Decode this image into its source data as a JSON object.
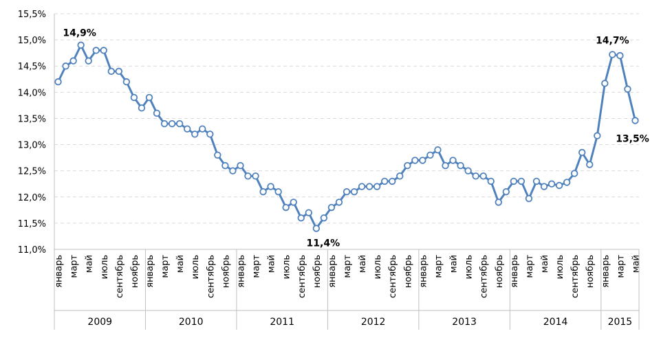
{
  "chart_data": {
    "type": "line",
    "title": "",
    "xlabel": "",
    "ylabel": "",
    "ylim": [
      11.0,
      15.5
    ],
    "y_ticks": [
      11.0,
      11.5,
      12.0,
      12.5,
      13.0,
      13.5,
      14.0,
      14.5,
      15.0,
      15.5
    ],
    "y_tick_labels": [
      "11,0%",
      "11,5%",
      "12,0%",
      "12,5%",
      "13,0%",
      "13,5%",
      "14,0%",
      "14,5%",
      "15,0%",
      "15,5%"
    ],
    "grid": "horizontal-dashed",
    "legend": "none",
    "line_color": "#4f81bd",
    "marker_fill": "#ffffff",
    "tick_labels": [
      "январь",
      "март",
      "май",
      "июль",
      "сентябрь",
      "ноябрь"
    ],
    "years": [
      "2009",
      "2010",
      "2011",
      "2012",
      "2013",
      "2014",
      "2015"
    ],
    "series": [
      {
        "values": [
          14.2,
          14.5,
          14.6,
          14.9,
          14.6,
          14.8,
          14.8,
          14.4,
          14.4,
          14.2,
          13.9,
          13.7,
          13.9,
          13.6,
          13.4,
          13.4,
          13.4,
          13.3,
          13.2,
          13.3,
          13.2,
          12.8,
          12.6,
          12.5,
          12.6,
          12.4,
          12.4,
          12.1,
          12.2,
          12.1,
          11.8,
          11.9,
          11.6,
          11.7,
          11.4,
          11.6,
          11.8,
          11.9,
          12.1,
          12.1,
          12.2,
          12.2,
          12.2,
          12.3,
          12.3,
          12.4,
          12.6,
          12.7,
          12.7,
          12.8,
          12.9,
          12.6,
          12.7,
          12.6,
          12.5,
          12.4,
          12.4,
          12.3,
          11.9,
          12.1,
          12.3,
          12.3,
          11.97,
          12.3,
          12.2,
          12.25,
          12.22,
          12.28,
          12.45,
          12.85,
          12.62,
          13.17,
          14.17,
          14.72,
          14.7,
          14.06,
          13.46
        ]
      }
    ],
    "annotations": [
      {
        "index": 3,
        "text": "14,9%"
      },
      {
        "index": 34,
        "text": "11,4%"
      },
      {
        "index": 73,
        "text": "14,7%"
      },
      {
        "index": 76,
        "text": "13,5%"
      }
    ]
  }
}
